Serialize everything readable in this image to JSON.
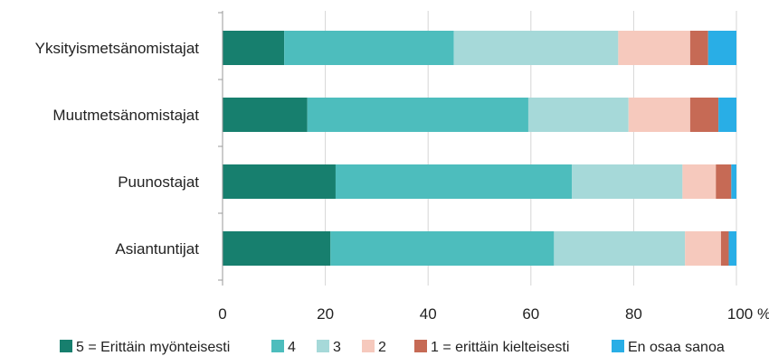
{
  "chart_data": {
    "type": "bar",
    "orientation": "horizontal",
    "stacked": true,
    "categories": [
      "Yksityismetsänomistajat",
      "Muutmetsänomistajat",
      "Puunostajat",
      "Asiantuntijat"
    ],
    "series": [
      {
        "name": "5 = Erittäin myönteisesti",
        "color": "#177f6e",
        "values": [
          12,
          16.5,
          22,
          21
        ]
      },
      {
        "name": "4",
        "color": "#4dbdbd",
        "values": [
          33,
          43,
          46,
          43.5
        ]
      },
      {
        "name": "3",
        "color": "#a6d9d9",
        "values": [
          32,
          19.5,
          21.5,
          25.5
        ]
      },
      {
        "name": "2",
        "color": "#f6c9bd",
        "values": [
          14,
          12,
          6.5,
          7
        ]
      },
      {
        "name": "1 = erittäin kielteisesti",
        "color": "#c66a55",
        "values": [
          3.5,
          5.5,
          3,
          1.5
        ]
      },
      {
        "name": "En osaa sanoa",
        "color": "#29aee6",
        "values": [
          5.5,
          3.5,
          1,
          1.5
        ]
      }
    ],
    "xlim": [
      0,
      100
    ],
    "xticks": [
      "0",
      "20",
      "40",
      "60",
      "80",
      "100 %"
    ],
    "legend_position": "bottom",
    "grid": true
  }
}
